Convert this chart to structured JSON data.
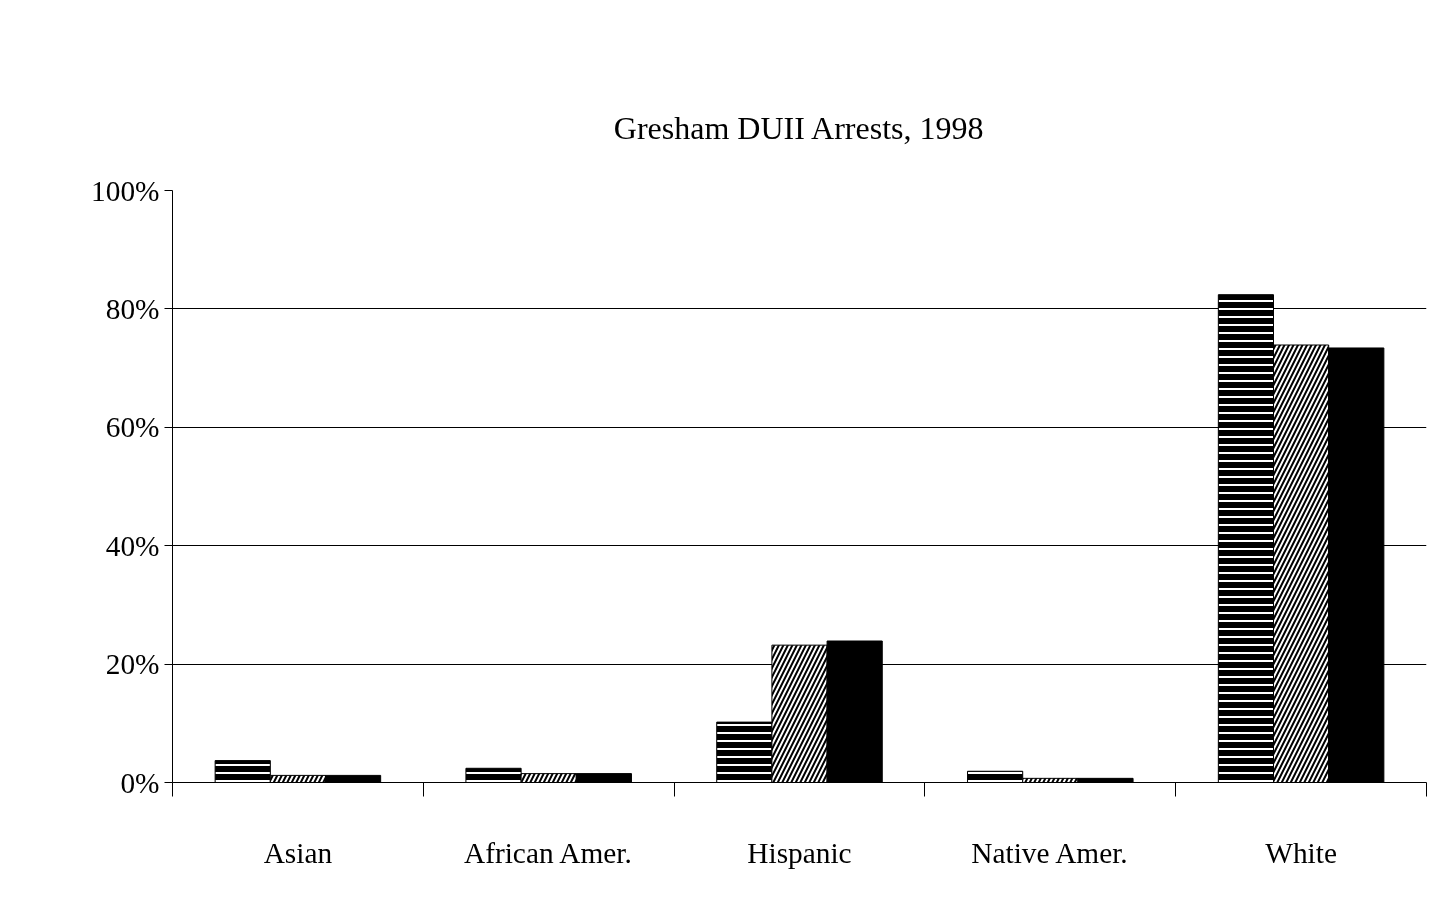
{
  "chart_data": {
    "type": "bar",
    "title": "Gresham DUII Arrests, 1998",
    "categories": [
      "Asian",
      "African Amer.",
      "Hispanic",
      "Native Amer.",
      "White"
    ],
    "series": [
      {
        "color": "#000000",
        "values": [
          3.7,
          2.4,
          10.2,
          1.9,
          82.4
        ]
      },
      {
        "color": "#ffffff",
        "values": [
          1.2,
          1.5,
          23.2,
          0.7,
          73.9
        ]
      },
      {
        "color": "#000000",
        "values": [
          1.2,
          1.5,
          23.9,
          0.7,
          73.4
        ]
      }
    ],
    "ylim": [
      0,
      100
    ],
    "yticks": [
      {
        "value": 0,
        "label": "0%"
      },
      {
        "value": 20,
        "label": "20%"
      },
      {
        "value": 40,
        "label": "40%"
      },
      {
        "value": 60,
        "label": "60%"
      },
      {
        "value": 80,
        "label": "80%"
      },
      {
        "value": 100,
        "label": "100%"
      }
    ],
    "grid": "y"
  }
}
